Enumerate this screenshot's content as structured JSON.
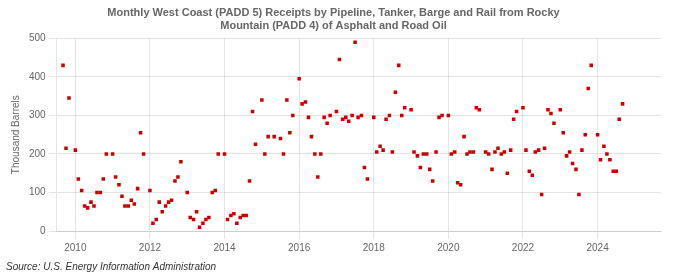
{
  "chart_data": {
    "type": "scatter",
    "title": "Monthly West Coast (PADD 5) Receipts by Pipeline, Tanker, Barge and Rail from Rocky\nMountain (PADD 4) of Asphalt and Road Oil",
    "ylabel": "Thousand Barrels",
    "source": "Source: U.S. Energy Information Administration",
    "color": "#cc0000",
    "marker": "square",
    "grid": true,
    "xlim": [
      2009.5,
      2025.7
    ],
    "ylim": [
      0,
      500
    ],
    "xticks": [
      2010,
      2012,
      2014,
      2016,
      2018,
      2020,
      2022,
      2024
    ],
    "yticks": [
      0,
      100,
      200,
      300,
      400,
      500
    ],
    "x": [
      2009.67,
      2009.75,
      2009.83,
      2010.0,
      2010.08,
      2010.17,
      2010.25,
      2010.33,
      2010.42,
      2010.5,
      2010.58,
      2010.67,
      2010.75,
      2010.83,
      2011.0,
      2011.08,
      2011.17,
      2011.25,
      2011.33,
      2011.42,
      2011.5,
      2011.58,
      2011.67,
      2011.75,
      2011.83,
      2012.0,
      2012.08,
      2012.17,
      2012.25,
      2012.33,
      2012.42,
      2012.5,
      2012.58,
      2012.67,
      2012.75,
      2012.83,
      2013.0,
      2013.08,
      2013.17,
      2013.25,
      2013.33,
      2013.42,
      2013.5,
      2013.58,
      2013.67,
      2013.75,
      2013.83,
      2014.0,
      2014.08,
      2014.17,
      2014.25,
      2014.33,
      2014.42,
      2014.5,
      2014.58,
      2014.67,
      2014.75,
      2014.83,
      2015.0,
      2015.08,
      2015.17,
      2015.33,
      2015.5,
      2015.58,
      2015.67,
      2015.75,
      2015.83,
      2016.0,
      2016.08,
      2016.17,
      2016.25,
      2016.33,
      2016.42,
      2016.5,
      2016.58,
      2016.67,
      2016.75,
      2016.83,
      2017.0,
      2017.08,
      2017.17,
      2017.25,
      2017.33,
      2017.42,
      2017.5,
      2017.58,
      2017.67,
      2017.75,
      2017.83,
      2018.0,
      2018.08,
      2018.17,
      2018.25,
      2018.33,
      2018.42,
      2018.5,
      2018.58,
      2018.67,
      2018.75,
      2018.83,
      2019.0,
      2019.08,
      2019.17,
      2019.25,
      2019.33,
      2019.42,
      2019.5,
      2019.58,
      2019.67,
      2019.75,
      2019.83,
      2020.0,
      2020.08,
      2020.17,
      2020.25,
      2020.33,
      2020.42,
      2020.5,
      2020.58,
      2020.67,
      2020.75,
      2020.83,
      2021.0,
      2021.08,
      2021.17,
      2021.25,
      2021.33,
      2021.42,
      2021.5,
      2021.58,
      2021.67,
      2021.75,
      2021.83,
      2022.0,
      2022.08,
      2022.17,
      2022.25,
      2022.33,
      2022.42,
      2022.5,
      2022.58,
      2022.67,
      2022.75,
      2022.83,
      2023.0,
      2023.08,
      2023.17,
      2023.25,
      2023.33,
      2023.42,
      2023.5,
      2023.58,
      2023.67,
      2023.75,
      2023.83,
      2024.0,
      2024.08,
      2024.17,
      2024.25,
      2024.33,
      2024.42,
      2024.5,
      2024.58,
      2024.67
    ],
    "values": [
      430,
      215,
      345,
      210,
      135,
      105,
      65,
      60,
      75,
      65,
      100,
      100,
      135,
      200,
      200,
      140,
      120,
      90,
      65,
      65,
      80,
      70,
      110,
      255,
      200,
      105,
      20,
      30,
      75,
      50,
      65,
      75,
      80,
      130,
      140,
      180,
      100,
      35,
      30,
      50,
      10,
      20,
      30,
      35,
      100,
      105,
      200,
      200,
      30,
      40,
      45,
      20,
      35,
      40,
      40,
      130,
      310,
      225,
      340,
      200,
      245,
      245,
      240,
      200,
      340,
      255,
      300,
      395,
      330,
      335,
      295,
      245,
      200,
      140,
      200,
      295,
      280,
      300,
      310,
      445,
      290,
      295,
      285,
      300,
      490,
      295,
      300,
      165,
      135,
      295,
      205,
      220,
      210,
      290,
      300,
      205,
      360,
      430,
      300,
      320,
      315,
      205,
      195,
      165,
      200,
      200,
      160,
      130,
      205,
      295,
      300,
      300,
      200,
      205,
      125,
      120,
      245,
      200,
      205,
      205,
      320,
      315,
      205,
      200,
      160,
      205,
      215,
      200,
      205,
      150,
      210,
      290,
      310,
      320,
      210,
      155,
      145,
      205,
      210,
      95,
      215,
      315,
      305,
      280,
      315,
      255,
      195,
      205,
      175,
      160,
      95,
      210,
      250,
      370,
      430,
      250,
      185,
      220,
      200,
      185,
      155,
      155,
      290,
      330
    ]
  }
}
